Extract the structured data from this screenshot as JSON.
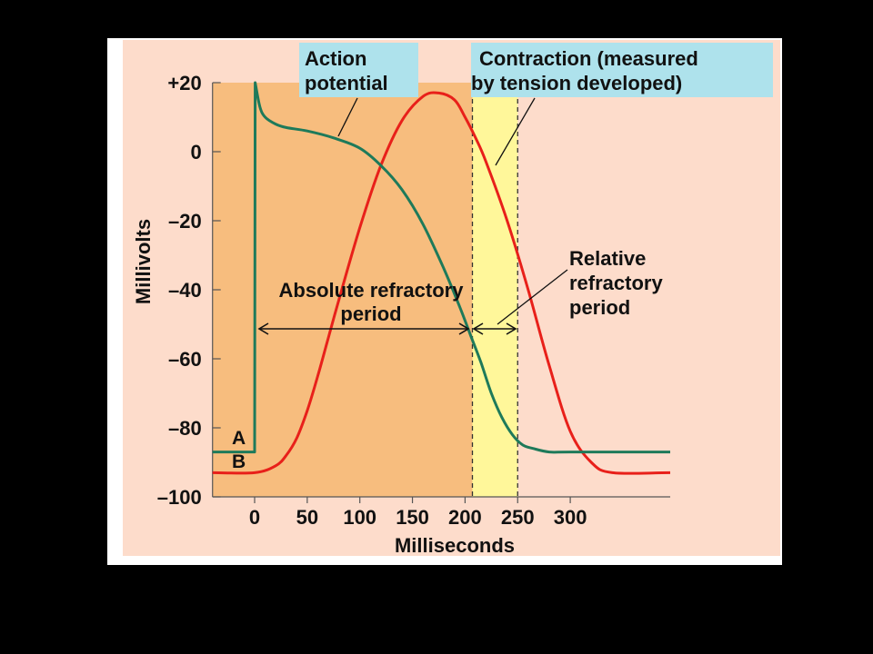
{
  "chart_data": {
    "type": "line",
    "xlabel": "Milliseconds",
    "ylabel": "Millivolts",
    "xlim": [
      -40,
      395
    ],
    "ylim": [
      -100,
      20
    ],
    "x_ticks": [
      0,
      50,
      100,
      150,
      200,
      250,
      300
    ],
    "x_tick_labels": [
      "0",
      "50",
      "100",
      "150",
      "200",
      "250",
      "300"
    ],
    "y_ticks": [
      20,
      0,
      -20,
      -40,
      -60,
      -80,
      -100
    ],
    "y_tick_labels": [
      "+20",
      "0",
      "–20",
      "–40",
      "–60",
      "–80",
      "–100"
    ],
    "series": [
      {
        "key": "action_potential",
        "label_letter": "A",
        "color": "#1e7a5a",
        "x": [
          -40,
          0,
          0.5,
          5,
          10,
          20,
          30,
          50,
          75,
          100,
          120,
          140,
          160,
          180,
          195,
          205,
          215,
          225,
          235,
          245,
          255,
          265,
          280,
          300,
          395
        ],
        "y": [
          -87,
          -87,
          20,
          13,
          10,
          8,
          7,
          6,
          4,
          1,
          -4,
          -11,
          -21,
          -34,
          -45,
          -53,
          -61,
          -70,
          -77,
          -82,
          -85,
          -86,
          -87,
          -87,
          -87
        ]
      },
      {
        "key": "contraction",
        "label_letter": "B",
        "color": "#e8201a",
        "x": [
          -40,
          0,
          20,
          30,
          40,
          50,
          60,
          70,
          80,
          100,
          120,
          140,
          160,
          175,
          190,
          200,
          210,
          220,
          240,
          260,
          280,
          300,
          320,
          340,
          395
        ],
        "y": [
          -93,
          -93,
          -91,
          -88,
          -83,
          -75,
          -65,
          -54,
          -43,
          -22,
          -4,
          9,
          16,
          17,
          15,
          10,
          4,
          -3,
          -20,
          -40,
          -62,
          -81,
          -90,
          -93,
          -93
        ]
      }
    ],
    "regions": [
      {
        "key": "absolute_refractory",
        "x_range": [
          -40,
          207
        ],
        "color": "#f7bd7e"
      },
      {
        "key": "relative_refractory",
        "x_range": [
          207,
          250
        ],
        "color": "#fff79a"
      }
    ],
    "reference_lines": [
      {
        "x": 207,
        "style": "dashed"
      },
      {
        "x": 250,
        "style": "dashed"
      }
    ],
    "annotations": {
      "action_potential": [
        "Action",
        "potential"
      ],
      "contraction": [
        "Contraction (measured",
        "by tension developed)"
      ],
      "absolute_refractory": [
        "Absolute refractory",
        "period"
      ],
      "relative_refractory": [
        "Relative",
        "refractory",
        "period"
      ]
    },
    "colors": {
      "background": "#fddccb",
      "callout_box": "#aee2ec",
      "axis": "#555555"
    }
  }
}
